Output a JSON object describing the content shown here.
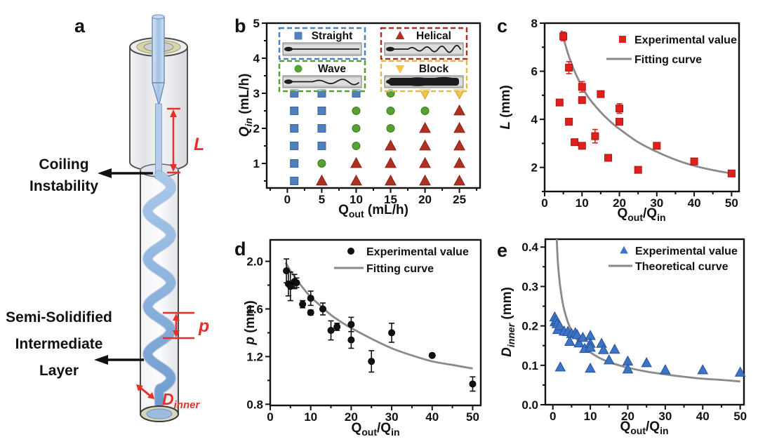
{
  "figure": {
    "description": "Coiling instability microfluidic fiber figure: schematic, morphology phase diagram and parameter plots"
  },
  "panels": {
    "a": {
      "label": "a",
      "coiling": [
        "Coiling",
        "Instability"
      ],
      "layer": [
        "Semi-Solidified",
        "Intermediate",
        "Layer"
      ],
      "symbols": {
        "L": "L",
        "p": "p",
        "D_base": "D",
        "D_sub": "inner"
      },
      "colors": {
        "annotation_red": "#e8302a",
        "label_black": "#111111",
        "liquid_blue": "#8fb4dd",
        "glass_gray": "#e7e9ec"
      }
    },
    "b": {
      "label": "b"
    },
    "c": {
      "label": "c"
    },
    "d": {
      "label": "d"
    },
    "e": {
      "label": "e"
    }
  },
  "chart_data": [
    {
      "id": "b",
      "type": "scatter",
      "role": "phase-diagram",
      "xlabel_segments": [
        {
          "t": "Q"
        },
        {
          "t": "out",
          "sub": true
        },
        {
          "t": " (mL/h)"
        }
      ],
      "ylabel_segments": [
        {
          "t": "Q",
          "i": true
        },
        {
          "t": "in",
          "sub": true,
          "i": true
        },
        {
          "t": " (mL/h)"
        }
      ],
      "xlim": [
        -3,
        28
      ],
      "ylim": [
        0.3,
        5
      ],
      "xticks": [
        0,
        5,
        10,
        15,
        20,
        25
      ],
      "xticklabels": [
        "0",
        "5",
        "10",
        "15",
        "20",
        "25"
      ],
      "yticks": [
        1,
        2,
        3,
        4,
        5
      ],
      "yticklabels": [
        "1",
        "2",
        "3",
        "4",
        "5"
      ],
      "x_minor_step": 2.5,
      "y_minor_step": 0.5,
      "grid": false,
      "series": [
        {
          "name": "Straight",
          "marker": "square",
          "color": "#4f81bd",
          "edge": "#38639c",
          "points": [
            [
              1,
              0.5
            ],
            [
              1,
              1
            ],
            [
              1,
              1.5
            ],
            [
              1,
              2
            ],
            [
              1,
              2.5
            ],
            [
              1,
              3
            ],
            [
              5,
              1.5
            ],
            [
              5,
              2
            ],
            [
              5,
              2.5
            ],
            [
              5,
              3
            ],
            [
              10,
              3
            ]
          ]
        },
        {
          "name": "Wave",
          "marker": "circle",
          "color": "#55a132",
          "edge": "#3c7d20",
          "points": [
            [
              5,
              1
            ],
            [
              10,
              1.5
            ],
            [
              10,
              2
            ],
            [
              10,
              2.5
            ],
            [
              15,
              2
            ],
            [
              15,
              2.5
            ],
            [
              15,
              3
            ],
            [
              20,
              2.5
            ]
          ]
        },
        {
          "name": "Helical",
          "marker": "triangle-up",
          "color": "#b03123",
          "edge": "#86200f",
          "points": [
            [
              5,
              0.5
            ],
            [
              10,
              0.5
            ],
            [
              10,
              1
            ],
            [
              15,
              0.5
            ],
            [
              15,
              1
            ],
            [
              15,
              1.5
            ],
            [
              20,
              0.5
            ],
            [
              20,
              1
            ],
            [
              20,
              1.5
            ],
            [
              20,
              2
            ],
            [
              25,
              0.5
            ],
            [
              25,
              1
            ],
            [
              25,
              1.5
            ],
            [
              25,
              2
            ],
            [
              25,
              2.5
            ]
          ]
        },
        {
          "name": "Block",
          "marker": "triangle-down",
          "color": "#f5c445",
          "edge": "#d29a2d",
          "points": [
            [
              20,
              3
            ],
            [
              25,
              3
            ]
          ]
        }
      ],
      "insets": [
        {
          "label": "Straight",
          "marker": "square",
          "color": "#4f81bd",
          "border": "#4f81bd",
          "pattern": "straight"
        },
        {
          "label": "Helical",
          "marker": "triangle-up",
          "color": "#b03123",
          "border": "#a93226",
          "pattern": "helical"
        },
        {
          "label": "Wave",
          "marker": "circle",
          "color": "#55a132",
          "border": "#55a132",
          "pattern": "wave"
        },
        {
          "label": "Block",
          "marker": "triangle-down",
          "color": "#f5c445",
          "border": "#e3bc45",
          "pattern": "block"
        }
      ]
    },
    {
      "id": "c",
      "type": "scatter",
      "xlabel_segments": [
        {
          "t": "Q"
        },
        {
          "t": "out",
          "sub": true
        },
        {
          "t": "/Q"
        },
        {
          "t": "in",
          "sub": true
        }
      ],
      "ylabel_segments": [
        {
          "t": "L",
          "i": true
        },
        {
          "t": " (mm)"
        }
      ],
      "xlim": [
        0,
        52
      ],
      "ylim": [
        1,
        8
      ],
      "xticks": [
        0,
        10,
        20,
        30,
        40,
        50
      ],
      "xticklabels": [
        "0",
        "10",
        "20",
        "30",
        "40",
        "50"
      ],
      "yticks": [
        2,
        4,
        6,
        8
      ],
      "yticklabels": [
        "2",
        "4",
        "6",
        "8"
      ],
      "x_minor_step": 5,
      "y_minor_step": 1,
      "grid": false,
      "legend": [
        {
          "label": "Experimental value",
          "marker": "square",
          "color": "#e0201c"
        },
        {
          "label": "Fitting curve",
          "marker": "line",
          "color": "#8a8a8a"
        }
      ],
      "series": [
        {
          "name": "Experimental value",
          "marker": "square",
          "color": "#e0201c",
          "edge": "#b01210",
          "points": [
            [
              4,
              4.7,
              0
            ],
            [
              5,
              7.45,
              0.18
            ],
            [
              6.5,
              6.15,
              0.25
            ],
            [
              6.5,
              3.9,
              0
            ],
            [
              8,
              3.05,
              0
            ],
            [
              10,
              5.35,
              0.22
            ],
            [
              10,
              4.8,
              0
            ],
            [
              10,
              2.9,
              0
            ],
            [
              13.5,
              3.3,
              0.28
            ],
            [
              15,
              5.05,
              0
            ],
            [
              17,
              2.4,
              0
            ],
            [
              20,
              4.45,
              0.2
            ],
            [
              20,
              3.9,
              0
            ],
            [
              25,
              1.9,
              0
            ],
            [
              30,
              2.9,
              0
            ],
            [
              40,
              2.25,
              0
            ],
            [
              50,
              1.75,
              0
            ]
          ]
        }
      ],
      "curve": {
        "name": "Fitting curve",
        "color": "#8a8a8a",
        "points": [
          [
            4.5,
            7.7
          ],
          [
            5,
            7.4
          ],
          [
            6,
            6.85
          ],
          [
            7,
            6.4
          ],
          [
            8,
            6.0
          ],
          [
            10,
            5.35
          ],
          [
            12,
            4.85
          ],
          [
            15,
            4.3
          ],
          [
            18,
            3.85
          ],
          [
            20,
            3.6
          ],
          [
            25,
            3.05
          ],
          [
            30,
            2.65
          ],
          [
            35,
            2.32
          ],
          [
            40,
            2.07
          ],
          [
            45,
            1.89
          ],
          [
            50,
            1.75
          ]
        ]
      }
    },
    {
      "id": "d",
      "type": "scatter",
      "xlabel_segments": [
        {
          "t": "Q"
        },
        {
          "t": "out",
          "sub": true
        },
        {
          "t": "/Q"
        },
        {
          "t": "in",
          "sub": true
        }
      ],
      "ylabel_segments": [
        {
          "t": "p",
          "i": true
        },
        {
          "t": " (mm)"
        }
      ],
      "xlim": [
        0,
        52
      ],
      "ylim": [
        0.79,
        2.18
      ],
      "xticks": [
        0,
        10,
        20,
        30,
        40,
        50
      ],
      "xticklabels": [
        "0",
        "10",
        "20",
        "30",
        "40",
        "50"
      ],
      "yticks": [
        0.8,
        1.2,
        1.6,
        2.0
      ],
      "yticklabels": [
        "0.8",
        "1.2",
        "1.6",
        "2.0"
      ],
      "x_minor_step": 5,
      "y_minor_step": 0.2,
      "grid": false,
      "legend": [
        {
          "label": "Experimental value",
          "marker": "circle",
          "color": "#111111"
        },
        {
          "label": "Fitting curve",
          "marker": "line",
          "color": "#8a8a8a"
        }
      ],
      "series": [
        {
          "name": "Experimental value",
          "marker": "circle",
          "color": "#111111",
          "edge": "#000000",
          "points": [
            [
              4,
              1.92,
              0.1
            ],
            [
              4.5,
              1.81,
              0.1
            ],
            [
              5,
              1.79,
              0.12
            ],
            [
              6,
              1.83,
              0.06
            ],
            [
              6.5,
              1.82,
              0.04
            ],
            [
              8,
              1.64,
              0.03
            ],
            [
              10,
              1.69,
              0.06
            ],
            [
              10,
              1.57,
              0.02
            ],
            [
              13,
              1.6,
              0.05
            ],
            [
              15,
              1.42,
              0.08
            ],
            [
              16.5,
              1.45,
              0.03
            ],
            [
              20,
              1.47,
              0.06
            ],
            [
              20,
              1.34,
              0.07
            ],
            [
              25,
              1.16,
              0.09
            ],
            [
              30,
              1.4,
              0.08
            ],
            [
              40,
              1.21,
              0
            ],
            [
              50,
              0.97,
              0.06
            ]
          ]
        }
      ],
      "curve": {
        "name": "Fitting curve",
        "color": "#8a8a8a",
        "points": [
          [
            3.8,
            1.99
          ],
          [
            5,
            1.92
          ],
          [
            6,
            1.87
          ],
          [
            8,
            1.78
          ],
          [
            10,
            1.7
          ],
          [
            12,
            1.64
          ],
          [
            15,
            1.55
          ],
          [
            18,
            1.48
          ],
          [
            20,
            1.44
          ],
          [
            25,
            1.35
          ],
          [
            30,
            1.27
          ],
          [
            35,
            1.21
          ],
          [
            40,
            1.16
          ],
          [
            45,
            1.13
          ],
          [
            50,
            1.1
          ]
        ]
      }
    },
    {
      "id": "e",
      "type": "scatter",
      "xlabel_segments": [
        {
          "t": "Q"
        },
        {
          "t": "out",
          "sub": true
        },
        {
          "t": "/Q"
        },
        {
          "t": "in",
          "sub": true
        }
      ],
      "ylabel_segments": [
        {
          "t": "D",
          "i": true
        },
        {
          "t": "inner",
          "sub": true,
          "i": true
        },
        {
          "t": " (mm)"
        }
      ],
      "xlim": [
        -2,
        51
      ],
      "ylim": [
        0,
        0.42
      ],
      "xticks": [
        0,
        10,
        20,
        30,
        40,
        50
      ],
      "xticklabels": [
        "0",
        "10",
        "20",
        "30",
        "40",
        "50"
      ],
      "yticks": [
        0,
        0.1,
        0.2,
        0.3,
        0.4
      ],
      "yticklabels": [
        "0.0",
        "0.1",
        "0.2",
        "0.3",
        "0.4"
      ],
      "x_minor_step": 5,
      "y_minor_step": 0.05,
      "grid": false,
      "legend": [
        {
          "label": "Experimental value",
          "marker": "triangle-up",
          "color": "#3d74c5"
        },
        {
          "label": "Theoretical curve",
          "marker": "line",
          "color": "#8a8a8a"
        }
      ],
      "series": [
        {
          "name": "Experimental value",
          "marker": "triangle-up",
          "color": "#3d74c5",
          "edge": "#28529b",
          "points": [
            [
              0.5,
              0.222
            ],
            [
              0.6,
              0.21
            ],
            [
              0.9,
              0.215
            ],
            [
              1.1,
              0.205
            ],
            [
              1.3,
              0.19
            ],
            [
              1.8,
              0.2
            ],
            [
              2,
              0.095
            ],
            [
              3,
              0.186
            ],
            [
              4,
              0.185
            ],
            [
              4.5,
              0.16
            ],
            [
              5,
              0.18
            ],
            [
              6,
              0.182
            ],
            [
              6.5,
              0.177
            ],
            [
              7,
              0.156
            ],
            [
              8,
              0.17
            ],
            [
              8.5,
              0.142
            ],
            [
              10,
              0.175
            ],
            [
              10,
              0.155
            ],
            [
              10,
              0.145
            ],
            [
              10,
              0.092
            ],
            [
              13,
              0.155
            ],
            [
              13.5,
              0.139
            ],
            [
              15,
              0.113
            ],
            [
              16.5,
              0.14
            ],
            [
              20,
              0.11
            ],
            [
              20,
              0.09
            ],
            [
              25,
              0.106
            ],
            [
              30,
              0.088
            ],
            [
              40,
              0.088
            ],
            [
              50,
              0.082
            ]
          ]
        }
      ],
      "curve": {
        "name": "Theoretical curve",
        "color": "#8a8a8a",
        "points": [
          [
            1.05,
            0.42
          ],
          [
            1.3,
            0.368
          ],
          [
            1.7,
            0.322
          ],
          [
            2,
            0.297
          ],
          [
            2.5,
            0.266
          ],
          [
            3,
            0.242
          ],
          [
            4,
            0.21
          ],
          [
            5,
            0.188
          ],
          [
            6,
            0.171
          ],
          [
            8,
            0.148
          ],
          [
            10,
            0.133
          ],
          [
            13,
            0.116
          ],
          [
            16,
            0.105
          ],
          [
            20,
            0.094
          ],
          [
            25,
            0.084
          ],
          [
            30,
            0.077
          ],
          [
            35,
            0.071
          ],
          [
            40,
            0.066
          ],
          [
            45,
            0.063
          ],
          [
            50,
            0.059
          ]
        ]
      }
    }
  ]
}
